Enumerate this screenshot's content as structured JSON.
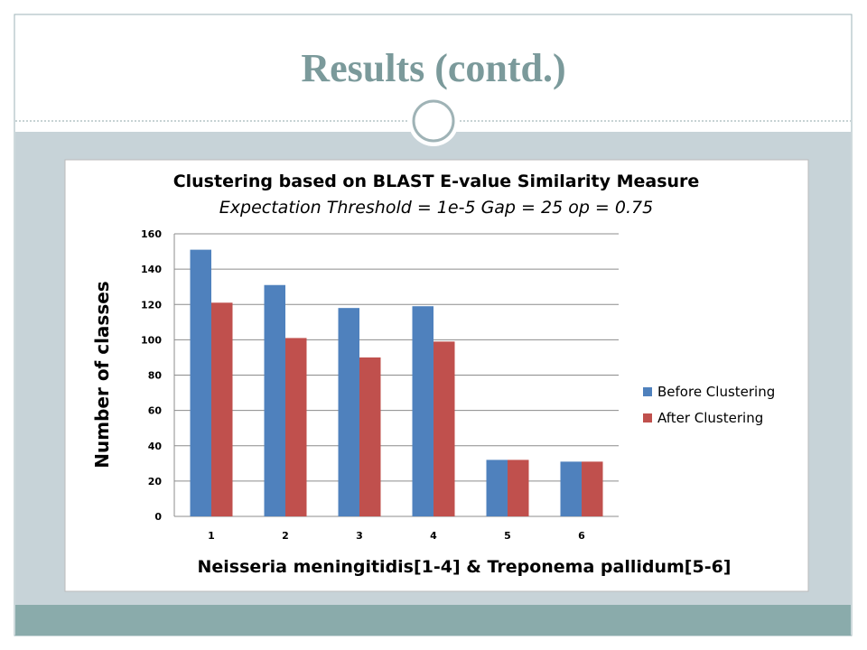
{
  "slide": {
    "title": "Results (contd.)"
  },
  "chart_data": {
    "type": "bar",
    "title": "Clustering based on BLAST E-value Similarity Measure",
    "subtitle": "Expectation Threshold = 1e-5 Gap = 25 op = 0.75",
    "x_label": "Neisseria meningitidis[1-4]  & Treponema pallidum[5-6]",
    "y_label": "Number of classes",
    "categories": [
      "1",
      "2",
      "3",
      "4",
      "5",
      "6"
    ],
    "series": [
      {
        "name": "Before Clustering",
        "color": "#4f81bd",
        "values": [
          151,
          131,
          118,
          119,
          32,
          31
        ]
      },
      {
        "name": "After Clustering",
        "color": "#c0504d",
        "values": [
          121,
          101,
          90,
          99,
          32,
          31
        ]
      }
    ],
    "ylim": [
      0,
      160
    ],
    "yticks": [
      0,
      20,
      40,
      60,
      80,
      100,
      120,
      140,
      160
    ],
    "grid": true,
    "legend": "right"
  }
}
